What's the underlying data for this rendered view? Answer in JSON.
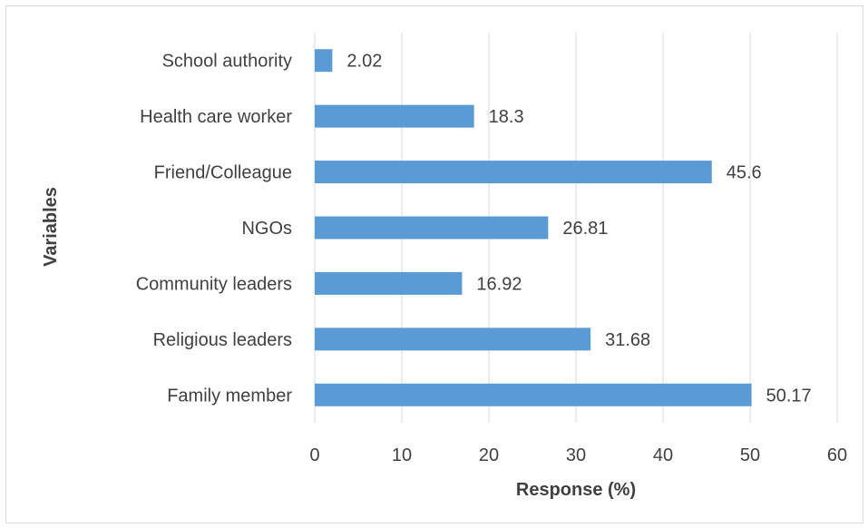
{
  "chart_data": {
    "type": "bar",
    "orientation": "horizontal",
    "categories": [
      "School authority",
      "Health care worker",
      "Friend/Colleague",
      "NGOs",
      "Community leaders",
      "Religious leaders",
      "Family member"
    ],
    "values": [
      2.02,
      18.3,
      45.6,
      26.81,
      16.92,
      31.68,
      50.17
    ],
    "value_labels": [
      "2.02",
      "18.3",
      "45.6",
      "26.81",
      "16.92",
      "31.68",
      "50.17"
    ],
    "title": "",
    "xlabel": "Response (%)",
    "ylabel": "Variables",
    "xlim": [
      0,
      60
    ],
    "xticks": [
      0,
      10,
      20,
      30,
      40,
      50,
      60
    ],
    "grid": "vertical",
    "legend": "none",
    "bar_color": "#5b9bd5",
    "grid_color": "#d9d9d9"
  }
}
